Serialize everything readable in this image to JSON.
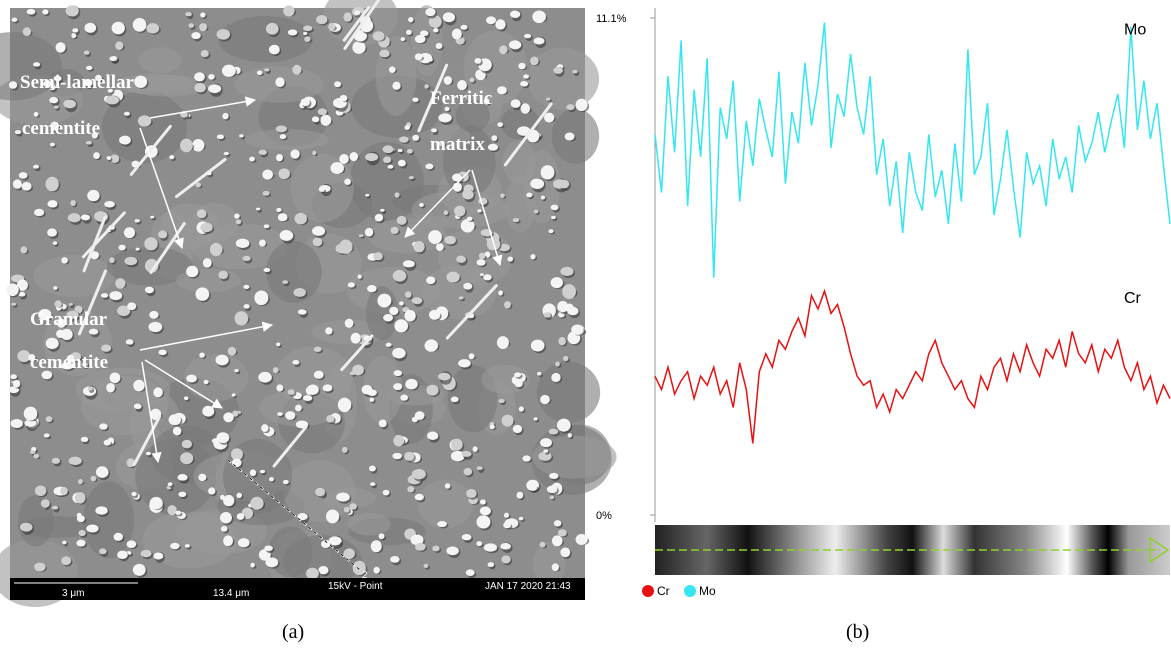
{
  "micrograph": {
    "annotations": [
      "Semi-lamellar",
      "cementite",
      "Ferritic",
      "matrix",
      "Granular",
      "cementite"
    ],
    "scale_bar": "3 μm",
    "field_width": "13.4 μm",
    "mode": "15kV - Point",
    "timestamp": "JAN 17 2020 21:43",
    "point_marker": "2",
    "caption": "(a)"
  },
  "chart_data": {
    "type": "line",
    "caption": "(b)",
    "ylim": [
      0,
      11.1
    ],
    "yticks": [
      {
        "value": 0,
        "label": "0%"
      },
      {
        "value": 11.1,
        "label": "11.1%"
      }
    ],
    "series": [
      {
        "name": "Mo",
        "color": "#33e6f0",
        "values": [
          8.5,
          7.2,
          9.8,
          8.1,
          10.6,
          6.9,
          9.5,
          8.0,
          10.2,
          5.3,
          9.1,
          8.4,
          9.7,
          7.0,
          8.8,
          7.8,
          9.3,
          8.6,
          8.0,
          9.9,
          7.4,
          9.0,
          8.3,
          10.1,
          8.7,
          9.6,
          11.0,
          8.2,
          9.4,
          8.9,
          10.3,
          9.1,
          8.5,
          9.8,
          7.6,
          8.4,
          6.9,
          7.9,
          6.3,
          8.1,
          7.2,
          6.8,
          8.5,
          7.1,
          7.7,
          6.5,
          8.3,
          7.0,
          10.4,
          7.6,
          8.0,
          9.2,
          6.7,
          7.5,
          8.6,
          7.3,
          6.2,
          8.1,
          7.4,
          7.8,
          6.9,
          8.4,
          7.5,
          8.0,
          7.2,
          8.7,
          7.9,
          8.3,
          9.0,
          8.1,
          8.8,
          9.4,
          8.2,
          10.9,
          8.6,
          9.7,
          8.4,
          9.2,
          7.8,
          6.5
        ]
      },
      {
        "name": "Cr",
        "color": "#e81010",
        "values": [
          3.1,
          2.8,
          3.3,
          2.7,
          3.0,
          3.2,
          2.6,
          3.1,
          2.9,
          3.3,
          2.7,
          3.0,
          2.4,
          3.4,
          2.8,
          1.6,
          3.2,
          3.6,
          3.3,
          3.9,
          3.7,
          4.1,
          4.4,
          4.0,
          4.9,
          4.6,
          5.0,
          4.5,
          4.7,
          4.2,
          3.6,
          3.1,
          2.9,
          3.0,
          2.4,
          2.7,
          2.3,
          2.8,
          2.6,
          2.9,
          3.2,
          3.0,
          3.6,
          3.9,
          3.4,
          3.1,
          2.8,
          3.0,
          2.6,
          2.4,
          3.1,
          2.8,
          3.3,
          3.5,
          3.0,
          3.6,
          3.2,
          3.8,
          3.4,
          3.1,
          3.7,
          3.5,
          3.9,
          3.3,
          4.1,
          3.6,
          3.4,
          3.8,
          3.2,
          3.7,
          3.5,
          3.9,
          3.3,
          3.0,
          3.4,
          2.8,
          3.1,
          2.5,
          2.9,
          2.6
        ]
      }
    ]
  }
}
